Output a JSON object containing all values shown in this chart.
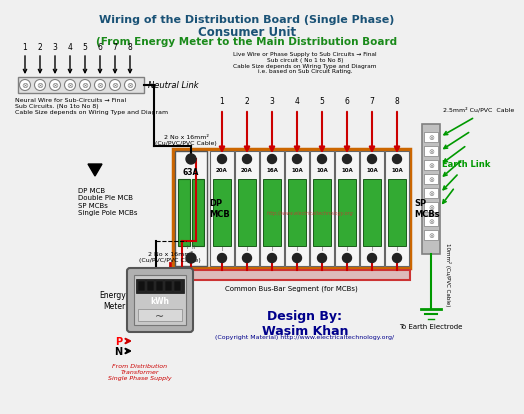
{
  "title_line1": "Wiring of the Distribution Board (Single Phase)",
  "title_line2": "Consumer Unit",
  "title_line3": "(From Energy Meter to the Main Distribution Board",
  "title_color": "#1a5276",
  "title3_color": "#1a8a1a",
  "bg_color": "#f0f0f0",
  "neutral_link_label": "Neutral Link",
  "neutral_wire_label": "Neural Wire for Sub-Circuits → Final\nSub Circuits. (No 1to No 8)\nCable Size depends on Wiring Type and Diagram",
  "cable_label_top": "2 No x 16mm²\n(Cu/PVC/PVC Cable)",
  "cable_label_bot": "2 No x 16mm²\n(Cu/PVC/PVC Cable)",
  "dp_mcb_label": "DP\nMCB",
  "dp_mcb_desc": "DP MCB\nDouble Ple MCB",
  "sp_mcbs_desc": "SP MCBs\nSingle Pole MCBs",
  "sp_mcbs_label": "SP\nMCBs",
  "energy_meter_label": "Energy\nMeter",
  "kwh_label": "kWh",
  "bus_bar_label": "Common Bus-Bar Segment (for MCBs)",
  "live_wire_label": "Live Wire or Phase Supply to Sub Circuits → Final\nSub circuit ( No 1 to No 8)\nCable Size depends on Wiring Type and Diagram\ni.e. based on Sub Circuit Rating.",
  "earth_link_label": "Earth Link",
  "earth_cable_label": "2.5mm² Cu/PVC  Cable",
  "earth_cable_bot": "10mm² (Cu/PVC Cable)",
  "earth_electrode_label": "To Earth Electrode",
  "design_by": "Design By:\nWasim Khan",
  "copyright": "(Copyright Material) http://www.electricaltechnology.org/",
  "website": "http://www.electricaltechnology.org",
  "pn_label_p": "P",
  "pn_label_n": "N",
  "from_dist": "From Distribution\nTransformer\nSingle Phase Supply",
  "dp_amp": "63A",
  "sp_amps": [
    "20A",
    "20A",
    "16A",
    "10A",
    "10A",
    "10A",
    "10A",
    "10A"
  ],
  "neutral_nums": [
    "1",
    "2",
    "3",
    "4",
    "5",
    "6",
    "7",
    "8"
  ],
  "live_nums": [
    "1",
    "2",
    "3",
    "4",
    "5",
    "6",
    "7",
    "8"
  ],
  "mcb_green": "#33aa33",
  "mcb_dark": "#1a5c1a",
  "wire_red": "#cc0000",
  "wire_black": "#111111",
  "wire_green": "#009900",
  "neutral_box_color": "#e0e0e0",
  "panel_border": "#cc6600",
  "bus_bar_color": "#cc3333"
}
